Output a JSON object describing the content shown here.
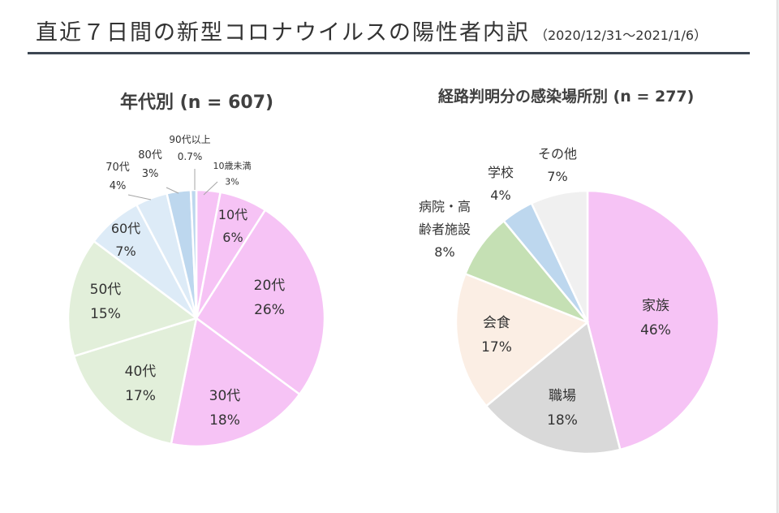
{
  "header": {
    "title": "直近７日間の新型コロナウイルスの陽性者内訳",
    "date_range": "（2020/12/31〜2021/1/6）"
  },
  "chart_data": [
    {
      "type": "pie",
      "title": "年代別 (n = 607)",
      "slices": [
        {
          "label": "10歳未満",
          "value": 3,
          "display": "3%",
          "color": "#f6c3f5"
        },
        {
          "label": "10代",
          "value": 6,
          "display": "6%",
          "color": "#f6c3f5"
        },
        {
          "label": "20代",
          "value": 26,
          "display": "26%",
          "color": "#f6c3f5"
        },
        {
          "label": "30代",
          "value": 18,
          "display": "18%",
          "color": "#f6c3f5"
        },
        {
          "label": "40代",
          "value": 17,
          "display": "17%",
          "color": "#e2efda"
        },
        {
          "label": "50代",
          "value": 15,
          "display": "15%",
          "color": "#e2efda"
        },
        {
          "label": "60代",
          "value": 7,
          "display": "7%",
          "color": "#ddebf7"
        },
        {
          "label": "70代",
          "value": 4,
          "display": "4%",
          "color": "#ddebf7"
        },
        {
          "label": "80代",
          "value": 3,
          "display": "3%",
          "color": "#bdd7ee"
        },
        {
          "label": "90代以上",
          "value": 0.7,
          "display": "0.7%",
          "color": "#bdd7ee"
        }
      ]
    },
    {
      "type": "pie",
      "title": "経路判明分の感染場所別 (n = 277)",
      "slices": [
        {
          "label": "家族",
          "value": 46,
          "display": "46%",
          "color": "#f6c3f5"
        },
        {
          "label": "職場",
          "value": 18,
          "display": "18%",
          "color": "#d9d9d9"
        },
        {
          "label": "会食",
          "value": 17,
          "display": "17%",
          "color": "#fbeee4"
        },
        {
          "label": "病院・高齢者施設",
          "value": 8,
          "display": "8%",
          "color": "#c5e0b4"
        },
        {
          "label": "学校",
          "value": 4,
          "display": "4%",
          "color": "#bdd7ee"
        },
        {
          "label": "その他",
          "value": 7,
          "display": "7%",
          "color": "#f0f0f0"
        }
      ]
    }
  ]
}
